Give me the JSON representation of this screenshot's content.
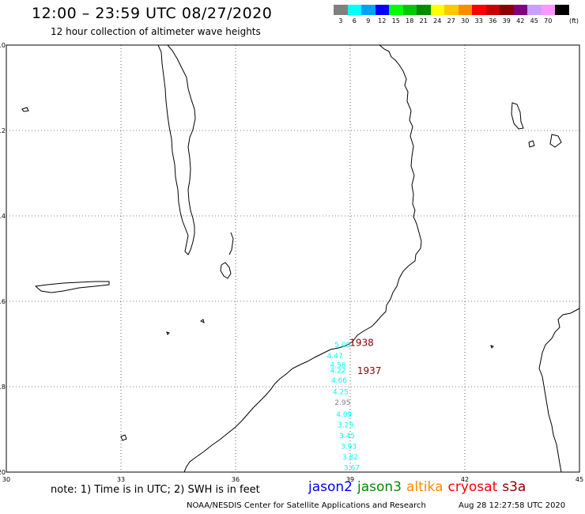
{
  "header": {
    "title": "12:00 – 23:59 UTC 08/27/2020",
    "subtitle": "12 hour collection of altimeter wave heights"
  },
  "legend": {
    "unit": "(ft)",
    "items": [
      {
        "label": "3",
        "color": "#808080"
      },
      {
        "label": "6",
        "color": "#00ffff"
      },
      {
        "label": "9",
        "color": "#00a0ff"
      },
      {
        "label": "12",
        "color": "#0000ff"
      },
      {
        "label": "15",
        "color": "#00ff00"
      },
      {
        "label": "18",
        "color": "#00c800"
      },
      {
        "label": "21",
        "color": "#008c00"
      },
      {
        "label": "24",
        "color": "#ffff00"
      },
      {
        "label": "27",
        "color": "#ffc800"
      },
      {
        "label": "30",
        "color": "#ff8c00"
      },
      {
        "label": "33",
        "color": "#ff0000"
      },
      {
        "label": "36",
        "color": "#c80000"
      },
      {
        "label": "39",
        "color": "#8c0000"
      },
      {
        "label": "42",
        "color": "#800080"
      },
      {
        "label": "45",
        "color": "#c8a0ff"
      },
      {
        "label": "70",
        "color": "#ff96ff"
      },
      {
        "label": "",
        "color": "#000000"
      }
    ]
  },
  "axes": {
    "lat_ticks": [
      "-10",
      "-12",
      "-14",
      "-16",
      "-18",
      "-20"
    ],
    "lon_ticks": [
      "30",
      "33",
      "36",
      "39",
      "42",
      "45"
    ]
  },
  "observations": [
    {
      "value": "5.09",
      "lon": 38.8,
      "lat": -17.07,
      "color": "#00ffff"
    },
    {
      "value": "4.47",
      "lon": 38.6,
      "lat": -17.33,
      "color": "#00ffff"
    },
    {
      "value": "4.58",
      "lon": 38.68,
      "lat": -17.55,
      "color": "#00ffff"
    },
    {
      "value": "4.22",
      "lon": 38.68,
      "lat": -17.68,
      "color": "#00ffff"
    },
    {
      "value": "4.66",
      "lon": 38.71,
      "lat": -17.91,
      "color": "#00ffff"
    },
    {
      "value": "4.25",
      "lon": 38.75,
      "lat": -18.18,
      "color": "#00ffff"
    },
    {
      "value": "2.95",
      "lon": 38.8,
      "lat": -18.43,
      "color": "#808080"
    },
    {
      "value": "4.09",
      "lon": 38.84,
      "lat": -18.7,
      "color": "#00ffff"
    },
    {
      "value": "3.29",
      "lon": 38.88,
      "lat": -18.95,
      "color": "#00ffff"
    },
    {
      "value": "3.45",
      "lon": 38.92,
      "lat": -19.2,
      "color": "#00ffff"
    },
    {
      "value": "3.93",
      "lon": 38.96,
      "lat": -19.45,
      "color": "#00ffff"
    },
    {
      "value": "3.82",
      "lon": 39.0,
      "lat": -19.7,
      "color": "#00ffff"
    },
    {
      "value": "3.67",
      "lon": 39.04,
      "lat": -19.95,
      "color": "#00ffff"
    }
  ],
  "track_times": [
    {
      "value": "1938",
      "lon": 39.3,
      "lat": -17.05,
      "color": "#8c0000"
    },
    {
      "value": "1937",
      "lon": 39.5,
      "lat": -17.7,
      "color": "#8c0000"
    }
  ],
  "footer": {
    "note": "note:  1) Time is in UTC;  2) SWH is in feet",
    "satellites": [
      {
        "name": "jason2",
        "color": "#0000ff"
      },
      {
        "name": "jason3",
        "color": "#008c00"
      },
      {
        "name": "altika",
        "color": "#ff8c00"
      },
      {
        "name": "cryosat",
        "color": "#ff0000"
      },
      {
        "name": "s3a",
        "color": "#8c0000"
      }
    ],
    "credit": "NOAA/NESDIS Center for Satellite Applications and Research",
    "timestamp": "Aug 28 12:27:58 UTC 2020"
  }
}
